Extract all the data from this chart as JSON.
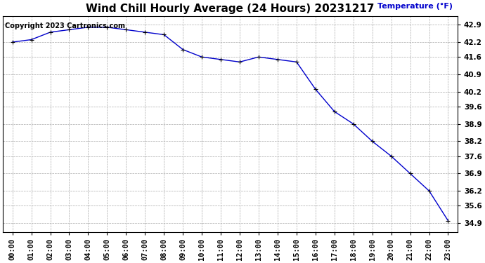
{
  "title": "Wind Chill Hourly Average (24 Hours) 20231217",
  "ylabel_text": "Temperature (°F)",
  "copyright_text": "Copyright 2023 Cartronics.com",
  "x_labels": [
    "00:00",
    "01:00",
    "02:00",
    "03:00",
    "04:00",
    "05:00",
    "06:00",
    "07:00",
    "08:00",
    "09:00",
    "10:00",
    "11:00",
    "12:00",
    "13:00",
    "14:00",
    "15:00",
    "16:00",
    "17:00",
    "18:00",
    "19:00",
    "20:00",
    "21:00",
    "22:00",
    "23:00"
  ],
  "y_values": [
    42.2,
    42.3,
    42.6,
    42.7,
    42.8,
    42.8,
    42.7,
    42.6,
    42.5,
    41.9,
    41.6,
    41.5,
    41.4,
    41.6,
    41.5,
    41.4,
    40.3,
    39.4,
    38.9,
    38.2,
    37.6,
    36.9,
    36.2,
    35.0,
    34.9
  ],
  "line_color": "#0000cc",
  "marker_color": "#000000",
  "grid_color": "#aaaaaa",
  "bg_color": "#ffffff",
  "title_fontsize": 11,
  "label_fontsize": 8,
  "tick_fontsize": 7.5,
  "ylabel_color": "#0000cc",
  "ylim_min": 34.55,
  "ylim_max": 43.25,
  "ytick_values": [
    34.9,
    35.6,
    36.2,
    36.9,
    37.6,
    38.2,
    38.9,
    39.6,
    40.2,
    40.9,
    41.6,
    42.2,
    42.9
  ]
}
